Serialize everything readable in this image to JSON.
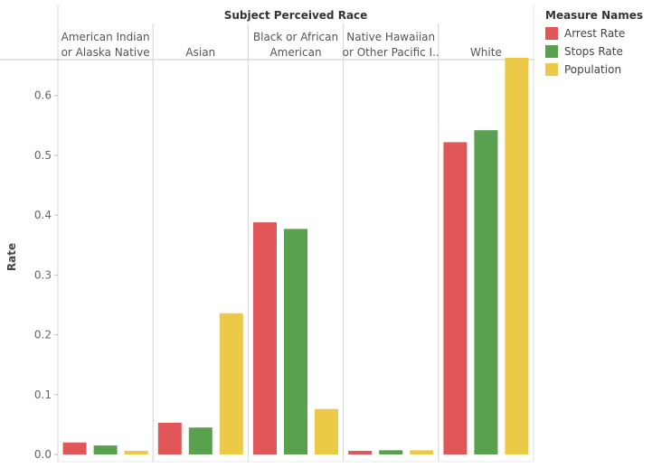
{
  "chart_data": {
    "type": "bar",
    "header_title": "Subject Perceived Race",
    "categories": [
      {
        "line1": "American Indian",
        "line2": "or Alaska Native"
      },
      {
        "line1": "",
        "line2": "Asian"
      },
      {
        "line1": "Black or African",
        "line2": "American"
      },
      {
        "line1": "Native Hawaiian",
        "line2": "or Other Pacific I.."
      },
      {
        "line1": "",
        "line2": "White"
      }
    ],
    "ylabel": "Rate",
    "ylim": [
      0,
      0.66
    ],
    "yticks": [
      "0.0",
      "0.1",
      "0.2",
      "0.3",
      "0.4",
      "0.5",
      "0.6"
    ],
    "ytick_values": [
      0,
      0.1,
      0.2,
      0.3,
      0.4,
      0.5,
      0.6
    ],
    "series": [
      {
        "name": "Arrest Rate",
        "color": "#e15759",
        "values": [
          0.02,
          0.053,
          0.388,
          0.006,
          0.522
        ]
      },
      {
        "name": "Stops Rate",
        "color": "#59a14f",
        "values": [
          0.015,
          0.045,
          0.377,
          0.007,
          0.542
        ]
      },
      {
        "name": "Population",
        "color": "#edc948",
        "values": [
          0.006,
          0.236,
          0.076,
          0.007,
          0.663
        ]
      }
    ],
    "legend": {
      "title": "Measure Names",
      "position": "top-right"
    },
    "grid": false
  }
}
